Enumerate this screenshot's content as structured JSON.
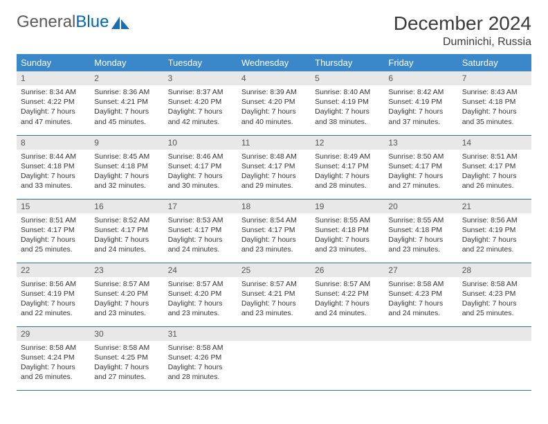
{
  "brand": {
    "word1": "General",
    "word2": "Blue",
    "word1_color": "#595959",
    "word2_color": "#0066b3",
    "icon_color": "#1a6fb3"
  },
  "title": "December 2024",
  "location": "Duminichi, Russia",
  "colors": {
    "header_bg": "#3a87c9",
    "header_text": "#ffffff",
    "daynum_bg": "#e8e8e8",
    "daynum_text": "#555555",
    "body_text": "#333333",
    "border": "#2f6ea8",
    "page_bg": "#ffffff"
  },
  "fonts": {
    "title_size_pt": 21,
    "location_size_pt": 12,
    "weekday_size_pt": 10,
    "daynum_size_pt": 9,
    "body_size_pt": 8
  },
  "weekdays": [
    "Sunday",
    "Monday",
    "Tuesday",
    "Wednesday",
    "Thursday",
    "Friday",
    "Saturday"
  ],
  "weeks": [
    [
      {
        "n": "1",
        "sunrise": "Sunrise: 8:34 AM",
        "sunset": "Sunset: 4:22 PM",
        "daylight": "Daylight: 7 hours and 47 minutes."
      },
      {
        "n": "2",
        "sunrise": "Sunrise: 8:36 AM",
        "sunset": "Sunset: 4:21 PM",
        "daylight": "Daylight: 7 hours and 45 minutes."
      },
      {
        "n": "3",
        "sunrise": "Sunrise: 8:37 AM",
        "sunset": "Sunset: 4:20 PM",
        "daylight": "Daylight: 7 hours and 42 minutes."
      },
      {
        "n": "4",
        "sunrise": "Sunrise: 8:39 AM",
        "sunset": "Sunset: 4:20 PM",
        "daylight": "Daylight: 7 hours and 40 minutes."
      },
      {
        "n": "5",
        "sunrise": "Sunrise: 8:40 AM",
        "sunset": "Sunset: 4:19 PM",
        "daylight": "Daylight: 7 hours and 38 minutes."
      },
      {
        "n": "6",
        "sunrise": "Sunrise: 8:42 AM",
        "sunset": "Sunset: 4:19 PM",
        "daylight": "Daylight: 7 hours and 37 minutes."
      },
      {
        "n": "7",
        "sunrise": "Sunrise: 8:43 AM",
        "sunset": "Sunset: 4:18 PM",
        "daylight": "Daylight: 7 hours and 35 minutes."
      }
    ],
    [
      {
        "n": "8",
        "sunrise": "Sunrise: 8:44 AM",
        "sunset": "Sunset: 4:18 PM",
        "daylight": "Daylight: 7 hours and 33 minutes."
      },
      {
        "n": "9",
        "sunrise": "Sunrise: 8:45 AM",
        "sunset": "Sunset: 4:18 PM",
        "daylight": "Daylight: 7 hours and 32 minutes."
      },
      {
        "n": "10",
        "sunrise": "Sunrise: 8:46 AM",
        "sunset": "Sunset: 4:17 PM",
        "daylight": "Daylight: 7 hours and 30 minutes."
      },
      {
        "n": "11",
        "sunrise": "Sunrise: 8:48 AM",
        "sunset": "Sunset: 4:17 PM",
        "daylight": "Daylight: 7 hours and 29 minutes."
      },
      {
        "n": "12",
        "sunrise": "Sunrise: 8:49 AM",
        "sunset": "Sunset: 4:17 PM",
        "daylight": "Daylight: 7 hours and 28 minutes."
      },
      {
        "n": "13",
        "sunrise": "Sunrise: 8:50 AM",
        "sunset": "Sunset: 4:17 PM",
        "daylight": "Daylight: 7 hours and 27 minutes."
      },
      {
        "n": "14",
        "sunrise": "Sunrise: 8:51 AM",
        "sunset": "Sunset: 4:17 PM",
        "daylight": "Daylight: 7 hours and 26 minutes."
      }
    ],
    [
      {
        "n": "15",
        "sunrise": "Sunrise: 8:51 AM",
        "sunset": "Sunset: 4:17 PM",
        "daylight": "Daylight: 7 hours and 25 minutes."
      },
      {
        "n": "16",
        "sunrise": "Sunrise: 8:52 AM",
        "sunset": "Sunset: 4:17 PM",
        "daylight": "Daylight: 7 hours and 24 minutes."
      },
      {
        "n": "17",
        "sunrise": "Sunrise: 8:53 AM",
        "sunset": "Sunset: 4:17 PM",
        "daylight": "Daylight: 7 hours and 24 minutes."
      },
      {
        "n": "18",
        "sunrise": "Sunrise: 8:54 AM",
        "sunset": "Sunset: 4:17 PM",
        "daylight": "Daylight: 7 hours and 23 minutes."
      },
      {
        "n": "19",
        "sunrise": "Sunrise: 8:55 AM",
        "sunset": "Sunset: 4:18 PM",
        "daylight": "Daylight: 7 hours and 23 minutes."
      },
      {
        "n": "20",
        "sunrise": "Sunrise: 8:55 AM",
        "sunset": "Sunset: 4:18 PM",
        "daylight": "Daylight: 7 hours and 23 minutes."
      },
      {
        "n": "21",
        "sunrise": "Sunrise: 8:56 AM",
        "sunset": "Sunset: 4:19 PM",
        "daylight": "Daylight: 7 hours and 22 minutes."
      }
    ],
    [
      {
        "n": "22",
        "sunrise": "Sunrise: 8:56 AM",
        "sunset": "Sunset: 4:19 PM",
        "daylight": "Daylight: 7 hours and 22 minutes."
      },
      {
        "n": "23",
        "sunrise": "Sunrise: 8:57 AM",
        "sunset": "Sunset: 4:20 PM",
        "daylight": "Daylight: 7 hours and 23 minutes."
      },
      {
        "n": "24",
        "sunrise": "Sunrise: 8:57 AM",
        "sunset": "Sunset: 4:20 PM",
        "daylight": "Daylight: 7 hours and 23 minutes."
      },
      {
        "n": "25",
        "sunrise": "Sunrise: 8:57 AM",
        "sunset": "Sunset: 4:21 PM",
        "daylight": "Daylight: 7 hours and 23 minutes."
      },
      {
        "n": "26",
        "sunrise": "Sunrise: 8:57 AM",
        "sunset": "Sunset: 4:22 PM",
        "daylight": "Daylight: 7 hours and 24 minutes."
      },
      {
        "n": "27",
        "sunrise": "Sunrise: 8:58 AM",
        "sunset": "Sunset: 4:23 PM",
        "daylight": "Daylight: 7 hours and 24 minutes."
      },
      {
        "n": "28",
        "sunrise": "Sunrise: 8:58 AM",
        "sunset": "Sunset: 4:23 PM",
        "daylight": "Daylight: 7 hours and 25 minutes."
      }
    ],
    [
      {
        "n": "29",
        "sunrise": "Sunrise: 8:58 AM",
        "sunset": "Sunset: 4:24 PM",
        "daylight": "Daylight: 7 hours and 26 minutes."
      },
      {
        "n": "30",
        "sunrise": "Sunrise: 8:58 AM",
        "sunset": "Sunset: 4:25 PM",
        "daylight": "Daylight: 7 hours and 27 minutes."
      },
      {
        "n": "31",
        "sunrise": "Sunrise: 8:58 AM",
        "sunset": "Sunset: 4:26 PM",
        "daylight": "Daylight: 7 hours and 28 minutes."
      },
      null,
      null,
      null,
      null
    ]
  ]
}
